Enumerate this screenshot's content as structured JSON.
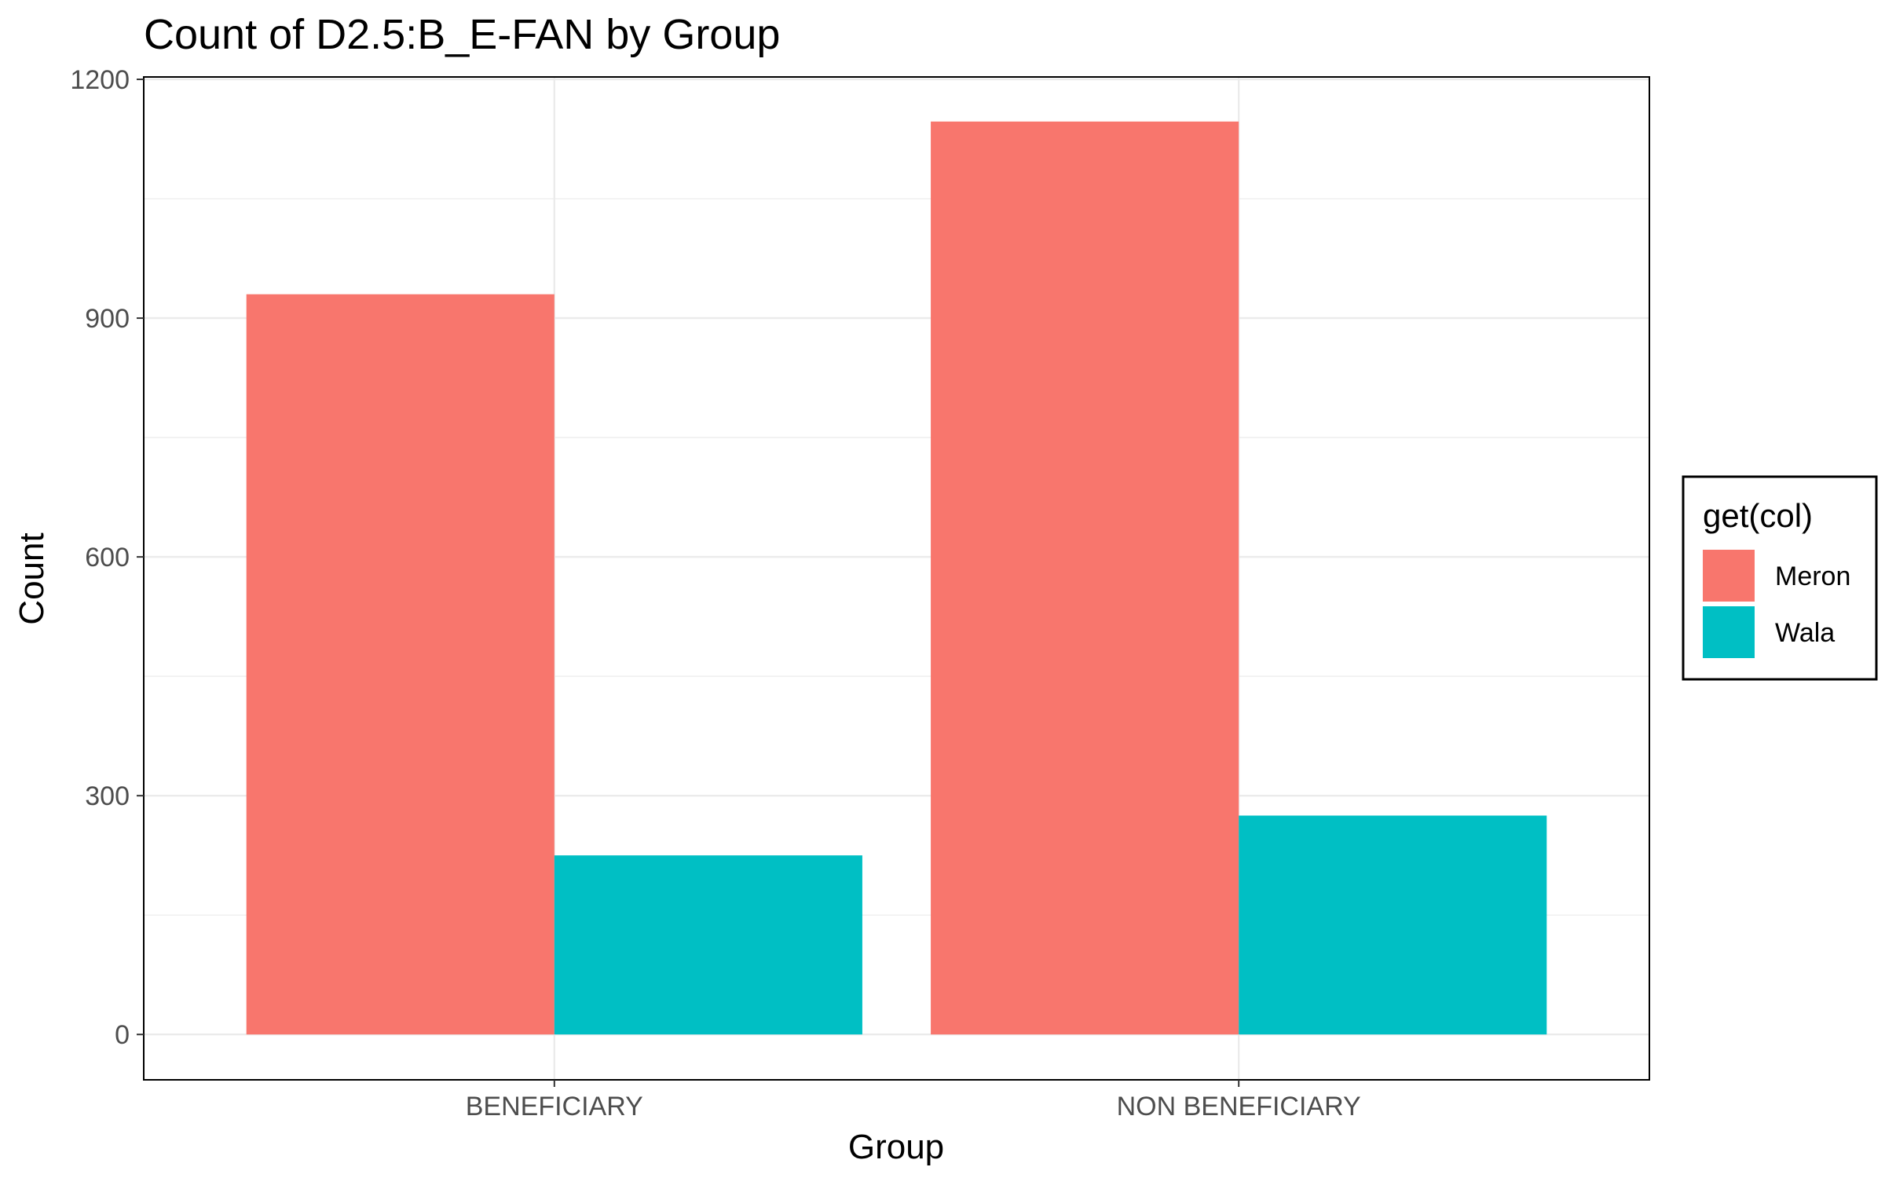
{
  "chart_data": {
    "type": "bar",
    "title": "Count of D2.5:B_E-FAN by Group",
    "xlabel": "Group",
    "ylabel": "Count",
    "categories": [
      "BENEFICIARY",
      "NON BENEFICIARY"
    ],
    "series": [
      {
        "name": "Meron",
        "values": [
          930,
          1147
        ],
        "color": "#F8766D"
      },
      {
        "name": "Wala",
        "values": [
          225,
          275
        ],
        "color": "#00BFC4"
      }
    ],
    "ylim": [
      -57,
      1203
    ],
    "yticks": [
      0,
      300,
      600,
      900,
      1200
    ],
    "grid": true,
    "legend": {
      "title": "get(col)",
      "position": "right"
    }
  }
}
